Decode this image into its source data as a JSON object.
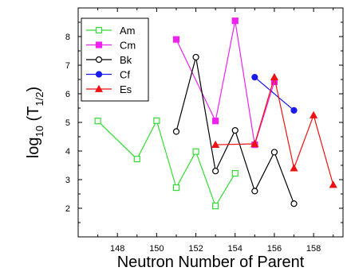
{
  "chart_data": {
    "type": "line",
    "xlabel": "Neutron Number of Parent",
    "ylabel": {
      "base": "log",
      "sub": "10",
      "open": " (T",
      "sub2": "1/2",
      "close": ")"
    },
    "xlim": [
      146,
      159.5
    ],
    "ylim": [
      1,
      9
    ],
    "xticks": [
      148,
      150,
      152,
      154,
      156,
      158
    ],
    "yticks": [
      2,
      3,
      4,
      5,
      6,
      7,
      8
    ],
    "grid": false,
    "legend_position": "top-left",
    "series": [
      {
        "name": "Am",
        "color": "#33dd33",
        "marker": "open-square",
        "x": [
          147,
          149,
          150,
          151,
          152,
          153,
          154
        ],
        "y": [
          5.05,
          3.72,
          5.06,
          2.72,
          3.98,
          2.08,
          3.22
        ]
      },
      {
        "name": "Cm",
        "color": "#ee22ee",
        "marker": "filled-square",
        "x": [
          151,
          153,
          154,
          155,
          156
        ],
        "y": [
          7.9,
          5.05,
          8.55,
          4.22,
          6.42
        ]
      },
      {
        "name": "Bk",
        "color": "#000000",
        "marker": "open-circle",
        "x": [
          151,
          152,
          153,
          154,
          155,
          156,
          157
        ],
        "y": [
          4.68,
          7.28,
          3.3,
          4.72,
          2.6,
          3.96,
          2.16
        ]
      },
      {
        "name": "Cf",
        "color": "#1a1aee",
        "marker": "filled-circle",
        "x": [
          155,
          157
        ],
        "y": [
          6.58,
          5.42
        ]
      },
      {
        "name": "Es",
        "color": "#ee1111",
        "marker": "filled-triangle",
        "x": [
          153,
          155,
          156,
          157,
          158,
          159
        ],
        "y": [
          4.22,
          4.25,
          6.58,
          3.4,
          5.25,
          2.82
        ]
      }
    ]
  }
}
